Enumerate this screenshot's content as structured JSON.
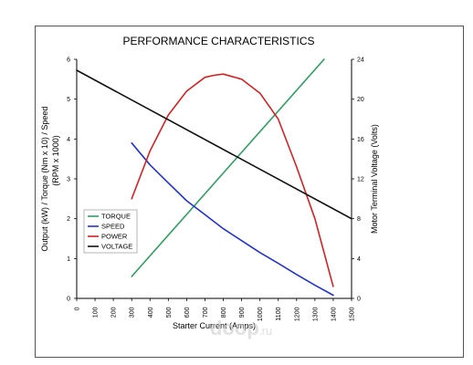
{
  "chart_data": {
    "type": "line",
    "title": "PERFORMANCE CHARACTERISTICS",
    "xlabel": "Starter Current (Amps)",
    "ylabel_left_line1": "Output (kW) / Torque (Nm x 10) / Speed",
    "ylabel_left_line2": "(RPM x 1000)",
    "ylabel_right": "Motor Terminal Voltage (Volts)",
    "xlim": [
      0,
      1500
    ],
    "ylim_left": [
      0,
      6
    ],
    "ylim_right": [
      0,
      24
    ],
    "x_ticks": [
      "0",
      "100",
      "200",
      "300",
      "400",
      "500",
      "600",
      "700",
      "800",
      "900",
      "1000",
      "1100",
      "1200",
      "1300",
      "1400",
      "1500"
    ],
    "y_left_ticks": [
      "0",
      "1",
      "2",
      "3",
      "4",
      "5",
      "6"
    ],
    "y_right_ticks": [
      "0",
      "4",
      "8",
      "12",
      "16",
      "20",
      "24"
    ],
    "legend_position": "left-middle",
    "series": [
      {
        "name": "TORQUE",
        "color": "#2e9e62",
        "axis": "left",
        "x": [
          300,
          1350
        ],
        "y": [
          0.55,
          6.0
        ]
      },
      {
        "name": "SPEED",
        "color": "#2233cc",
        "axis": "left",
        "x": [
          300,
          400,
          500,
          600,
          700,
          800,
          900,
          1000,
          1100,
          1200,
          1300,
          1400
        ],
        "y": [
          3.9,
          3.35,
          2.9,
          2.45,
          2.1,
          1.75,
          1.45,
          1.15,
          0.88,
          0.6,
          0.33,
          0.08
        ]
      },
      {
        "name": "POWER",
        "color": "#d42222",
        "axis": "left",
        "x": [
          300,
          400,
          500,
          600,
          700,
          750,
          800,
          900,
          1000,
          1100,
          1200,
          1300,
          1400
        ],
        "y": [
          2.5,
          3.7,
          4.6,
          5.2,
          5.55,
          5.6,
          5.63,
          5.5,
          5.15,
          4.5,
          3.3,
          2.0,
          0.3
        ]
      },
      {
        "name": "VOLTAGE",
        "color": "#111111",
        "axis": "right",
        "x": [
          0,
          1500
        ],
        "y": [
          22.9,
          8.0
        ]
      }
    ]
  },
  "watermark": {
    "text": "doop",
    "suffix": ".ru"
  }
}
